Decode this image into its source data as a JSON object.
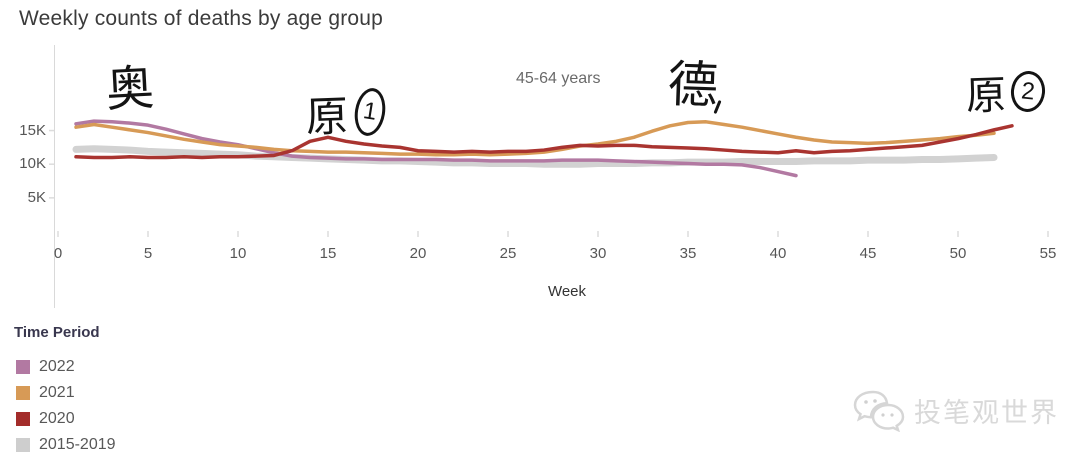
{
  "chart_data": {
    "type": "line",
    "title": "Weekly counts of deaths by age group",
    "pane_label": "45-64 years",
    "xlabel": "Week",
    "ylabel": "",
    "y_unit": "deaths per week (thousands)",
    "xlim": [
      0,
      55
    ],
    "ylim": [
      0,
      20
    ],
    "grid": false,
    "legend_position": "bottom-left",
    "x_ticks": [
      0,
      5,
      10,
      15,
      20,
      25,
      30,
      35,
      40,
      45,
      50,
      55
    ],
    "y_ticks": [
      {
        "label": "15K",
        "value": 15
      },
      {
        "label": "10K",
        "value": 10
      },
      {
        "label": "5K",
        "value": 5
      }
    ],
    "start_week": 1,
    "series": [
      {
        "name": "2015-2019",
        "color": "#d2d2d2",
        "width": 7,
        "values": [
          12.2,
          12.3,
          12.2,
          12.1,
          11.9,
          11.8,
          11.7,
          11.6,
          11.5,
          11.4,
          11.2,
          11.1,
          11.0,
          10.9,
          10.8,
          10.7,
          10.6,
          10.5,
          10.5,
          10.4,
          10.3,
          10.2,
          10.2,
          10.1,
          10.1,
          10.1,
          10.0,
          10.0,
          10.0,
          10.1,
          10.1,
          10.1,
          10.2,
          10.2,
          10.3,
          10.3,
          10.3,
          10.4,
          10.4,
          10.4,
          10.4,
          10.5,
          10.5,
          10.5,
          10.6,
          10.6,
          10.6,
          10.7,
          10.7,
          10.8,
          10.9,
          11.0
        ]
      },
      {
        "name": "2022",
        "color": "#b279a2",
        "width": 3.5,
        "values": [
          16.0,
          16.4,
          16.3,
          16.1,
          15.8,
          15.2,
          14.5,
          13.8,
          13.3,
          12.9,
          12.3,
          11.7,
          11.2,
          11.0,
          10.9,
          10.8,
          10.8,
          10.7,
          10.7,
          10.7,
          10.7,
          10.6,
          10.6,
          10.5,
          10.5,
          10.5,
          10.5,
          10.6,
          10.6,
          10.6,
          10.5,
          10.4,
          10.3,
          10.2,
          10.1,
          10.0,
          10.0,
          9.9,
          9.5,
          8.9,
          8.3
        ]
      },
      {
        "name": "2021",
        "color": "#d79a56",
        "width": 3.5,
        "values": [
          15.5,
          15.9,
          15.5,
          15.1,
          14.7,
          14.2,
          13.7,
          13.3,
          12.9,
          12.7,
          12.5,
          12.2,
          12.0,
          11.9,
          11.8,
          11.8,
          11.7,
          11.6,
          11.5,
          11.5,
          11.4,
          11.4,
          11.5,
          11.4,
          11.5,
          11.6,
          11.8,
          12.2,
          12.7,
          13.0,
          13.4,
          14.0,
          14.9,
          15.7,
          16.2,
          16.3,
          15.9,
          15.5,
          15.0,
          14.5,
          14.0,
          13.6,
          13.3,
          13.2,
          13.1,
          13.2,
          13.4,
          13.6,
          13.8,
          14.1,
          14.3,
          14.6
        ]
      },
      {
        "name": "2020",
        "color": "#a93430",
        "width": 3.5,
        "values": [
          11.1,
          11.0,
          11.0,
          11.1,
          11.0,
          11.0,
          11.1,
          11.0,
          11.1,
          11.1,
          11.2,
          11.3,
          12.0,
          13.4,
          14.0,
          13.4,
          13.0,
          12.7,
          12.5,
          12.0,
          11.9,
          11.8,
          11.9,
          11.8,
          11.9,
          11.9,
          12.1,
          12.5,
          12.8,
          12.7,
          12.8,
          12.8,
          12.6,
          12.5,
          12.4,
          12.3,
          12.1,
          11.9,
          11.8,
          11.7,
          12.0,
          11.7,
          11.9,
          12.0,
          12.2,
          12.4,
          12.6,
          12.8,
          13.3,
          13.8,
          14.4,
          15.1,
          15.7
        ]
      }
    ]
  },
  "annotations": [
    {
      "text": "奥"
    },
    {
      "text": "原",
      "badge": "1"
    },
    {
      "text": "德"
    },
    {
      "text": "原",
      "badge": "2"
    }
  ],
  "legend": {
    "title": "Time Period",
    "items": [
      {
        "label": "2022",
        "color": "#b279a2"
      },
      {
        "label": "2021",
        "color": "#d79a56"
      },
      {
        "label": "2020",
        "color": "#a32c2a"
      },
      {
        "label": "2015-2019",
        "color": "#cecece"
      }
    ]
  },
  "watermark": {
    "text": "投笔观世界"
  }
}
